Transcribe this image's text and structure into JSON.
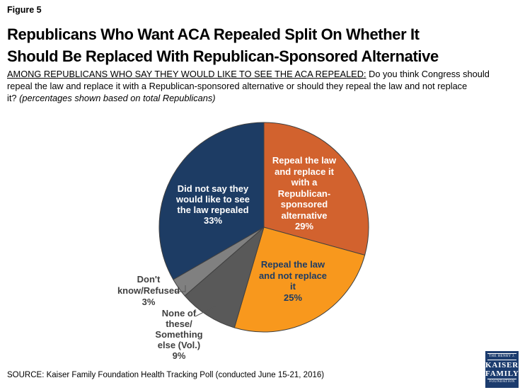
{
  "figure_label": "Figure 5",
  "title_lines": [
    "Republicans Who Want ACA Repealed Split On Whether It",
    "Should Be Replaced With Republican-Sponsored Alternative"
  ],
  "subtitle": {
    "line1_underlined": "AMONG REPUBLICANS WHO SAY THEY WOULD LIKE TO SEE THE ACA REPEALED:",
    "line1_rest": " Do you think Congress should",
    "line2": "repeal the law and replace it with a Republican-sponsored alternative or should they repeal the law and not replace",
    "line3_start": "it? ",
    "line3_italic": "(percentages shown based on total Republicans)"
  },
  "source": "SOURCE: Kaiser Family Foundation Health Tracking Poll (conducted June 15-21, 2016)",
  "logo": {
    "top": "THE HENRY J.",
    "name_line1": "KAISER",
    "name_line2": "FAMILY",
    "bottom": "FOUNDATION",
    "background": "#1c3c6e"
  },
  "chart_data": {
    "type": "pie",
    "direction": "clockwise",
    "start_at": "12 o'clock",
    "stroke": "#404040",
    "slices": [
      {
        "name": "repeal-and-replace",
        "label": "Repeal the law and replace it with a Republican-sponsored alternative",
        "value": 29,
        "pct_label": "29%",
        "color": "#D2622E",
        "text_color": "#FFFFFF",
        "label_placement": "inside",
        "label_lines": [
          "Repeal the law",
          "and replace it",
          "with a",
          "Republican-",
          "sponsored",
          "alternative",
          "29%"
        ]
      },
      {
        "name": "repeal-not-replace",
        "label": "Repeal the law and not replace it",
        "value": 25,
        "pct_label": "25%",
        "color": "#F8981D",
        "text_color": "#1D3C64",
        "label_placement": "inside",
        "label_lines": [
          "Repeal the law",
          "and not replace",
          "it",
          "25%"
        ]
      },
      {
        "name": "none-of-these",
        "label": "None of these/Something else (Vol.)",
        "value": 9,
        "pct_label": "9%",
        "color": "#595959",
        "text_color": "#404040",
        "label_placement": "outside",
        "label_lines": [
          "None of",
          "these/",
          "Something",
          "else (Vol.)",
          "9%"
        ]
      },
      {
        "name": "dont-know-refused",
        "label": "Don't know/Refused",
        "value": 3,
        "pct_label": "3%",
        "color": "#808080",
        "text_color": "#404040",
        "label_placement": "outside",
        "label_lines": [
          "Don't",
          "know/Refused",
          "3%"
        ]
      },
      {
        "name": "did-not-say-repeal",
        "label": "Did not say they would like to see the law repealed",
        "value": 33,
        "pct_label": "33%",
        "color": "#1D3C64",
        "text_color": "#FFFFFF",
        "label_placement": "inside",
        "label_lines": [
          "Did not say they",
          "would like to see",
          "the law repealed",
          "33%"
        ]
      }
    ]
  }
}
